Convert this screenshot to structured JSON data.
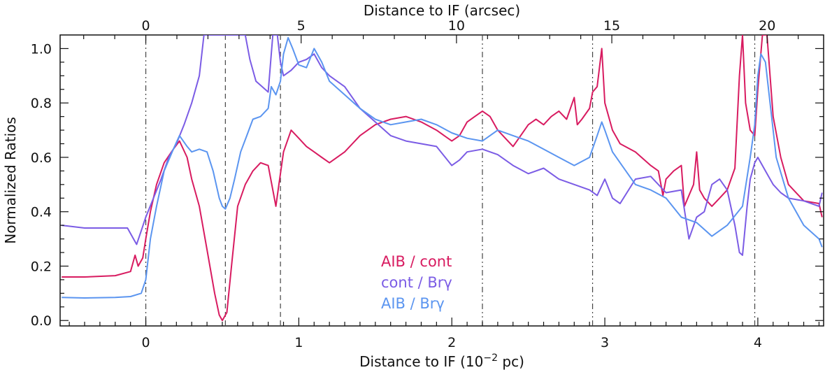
{
  "chart_data": {
    "type": "line",
    "xlabel_bottom_prefix": "Distance to IF (10",
    "xlabel_bottom_exp": "−2",
    "xlabel_bottom_suffix": " pc)",
    "xlabel_top": "Distance to IF (arcsec)",
    "ylabel": "Normalized Ratios",
    "xlim": [
      -0.56,
      4.43
    ],
    "ylim": [
      -0.02,
      1.05
    ],
    "x_ticks": [
      {
        "value": 0,
        "label": "0"
      },
      {
        "value": 1,
        "label": "1"
      },
      {
        "value": 2,
        "label": "2"
      },
      {
        "value": 3,
        "label": "3"
      },
      {
        "value": 4,
        "label": "4"
      }
    ],
    "y_ticks": [
      {
        "value": 0.0,
        "label": "0.0"
      },
      {
        "value": 0.2,
        "label": "0.2"
      },
      {
        "value": 0.4,
        "label": "0.4"
      },
      {
        "value": 0.6,
        "label": "0.6"
      },
      {
        "value": 0.8,
        "label": "0.8"
      },
      {
        "value": 1.0,
        "label": "1.0"
      }
    ],
    "top_ticks": [
      {
        "value": 0,
        "label": "0"
      },
      {
        "value": 5,
        "label": "5"
      },
      {
        "value": 10,
        "label": "10"
      },
      {
        "value": 15,
        "label": "15"
      },
      {
        "value": 20,
        "label": "20"
      }
    ],
    "arcsec_per_unit": 4.925,
    "vlines": [
      {
        "x": 0.0,
        "style": "dashdot"
      },
      {
        "x": 0.52,
        "style": "dashed"
      },
      {
        "x": 0.88,
        "style": "dashed"
      },
      {
        "x": 2.2,
        "style": "dashdot"
      },
      {
        "x": 2.92,
        "style": "dashdot"
      },
      {
        "x": 3.98,
        "style": "dashdot"
      }
    ],
    "series": [
      {
        "name": "AIB / cont",
        "color": "#d81b60",
        "points": [
          [
            -0.55,
            0.16
          ],
          [
            -0.4,
            0.16
          ],
          [
            -0.2,
            0.165
          ],
          [
            -0.1,
            0.18
          ],
          [
            -0.07,
            0.24
          ],
          [
            -0.05,
            0.2
          ],
          [
            -0.02,
            0.23
          ],
          [
            0.0,
            0.3
          ],
          [
            0.03,
            0.4
          ],
          [
            0.07,
            0.5
          ],
          [
            0.12,
            0.58
          ],
          [
            0.18,
            0.63
          ],
          [
            0.22,
            0.66
          ],
          [
            0.27,
            0.6
          ],
          [
            0.3,
            0.52
          ],
          [
            0.35,
            0.42
          ],
          [
            0.4,
            0.26
          ],
          [
            0.45,
            0.1
          ],
          [
            0.48,
            0.02
          ],
          [
            0.5,
            0.0
          ],
          [
            0.53,
            0.03
          ],
          [
            0.56,
            0.2
          ],
          [
            0.6,
            0.42
          ],
          [
            0.65,
            0.5
          ],
          [
            0.7,
            0.55
          ],
          [
            0.75,
            0.58
          ],
          [
            0.8,
            0.57
          ],
          [
            0.83,
            0.48
          ],
          [
            0.85,
            0.42
          ],
          [
            0.87,
            0.5
          ],
          [
            0.9,
            0.62
          ],
          [
            0.95,
            0.7
          ],
          [
            1.0,
            0.67
          ],
          [
            1.05,
            0.64
          ],
          [
            1.1,
            0.62
          ],
          [
            1.15,
            0.6
          ],
          [
            1.2,
            0.58
          ],
          [
            1.3,
            0.62
          ],
          [
            1.4,
            0.68
          ],
          [
            1.5,
            0.72
          ],
          [
            1.6,
            0.74
          ],
          [
            1.7,
            0.75
          ],
          [
            1.8,
            0.73
          ],
          [
            1.9,
            0.7
          ],
          [
            2.0,
            0.66
          ],
          [
            2.05,
            0.68
          ],
          [
            2.1,
            0.73
          ],
          [
            2.15,
            0.75
          ],
          [
            2.2,
            0.77
          ],
          [
            2.25,
            0.75
          ],
          [
            2.3,
            0.7
          ],
          [
            2.35,
            0.67
          ],
          [
            2.4,
            0.64
          ],
          [
            2.45,
            0.68
          ],
          [
            2.5,
            0.72
          ],
          [
            2.55,
            0.74
          ],
          [
            2.6,
            0.72
          ],
          [
            2.65,
            0.75
          ],
          [
            2.7,
            0.77
          ],
          [
            2.75,
            0.74
          ],
          [
            2.8,
            0.82
          ],
          [
            2.82,
            0.72
          ],
          [
            2.85,
            0.74
          ],
          [
            2.9,
            0.78
          ],
          [
            2.92,
            0.84
          ],
          [
            2.95,
            0.86
          ],
          [
            2.98,
            1.0
          ],
          [
            3.0,
            0.8
          ],
          [
            3.05,
            0.7
          ],
          [
            3.1,
            0.65
          ],
          [
            3.2,
            0.62
          ],
          [
            3.3,
            0.57
          ],
          [
            3.35,
            0.55
          ],
          [
            3.38,
            0.46
          ],
          [
            3.4,
            0.52
          ],
          [
            3.45,
            0.55
          ],
          [
            3.5,
            0.57
          ],
          [
            3.52,
            0.42
          ],
          [
            3.55,
            0.46
          ],
          [
            3.58,
            0.5
          ],
          [
            3.6,
            0.62
          ],
          [
            3.62,
            0.48
          ],
          [
            3.65,
            0.45
          ],
          [
            3.7,
            0.42
          ],
          [
            3.75,
            0.45
          ],
          [
            3.8,
            0.48
          ],
          [
            3.85,
            0.56
          ],
          [
            3.88,
            0.9
          ],
          [
            3.9,
            1.05
          ],
          [
            3.92,
            0.8
          ],
          [
            3.95,
            0.7
          ],
          [
            3.98,
            0.68
          ],
          [
            4.0,
            0.85
          ],
          [
            4.03,
            1.05
          ],
          [
            4.06,
            1.05
          ],
          [
            4.1,
            0.75
          ],
          [
            4.15,
            0.6
          ],
          [
            4.2,
            0.5
          ],
          [
            4.3,
            0.44
          ],
          [
            4.4,
            0.43
          ],
          [
            4.42,
            0.38
          ]
        ]
      },
      {
        "name": "cont / Brγ",
        "color": "#7b5ce5",
        "points": [
          [
            -0.55,
            0.35
          ],
          [
            -0.4,
            0.34
          ],
          [
            -0.2,
            0.34
          ],
          [
            -0.12,
            0.34
          ],
          [
            -0.08,
            0.3
          ],
          [
            -0.06,
            0.28
          ],
          [
            -0.03,
            0.33
          ],
          [
            0.0,
            0.38
          ],
          [
            0.05,
            0.45
          ],
          [
            0.1,
            0.52
          ],
          [
            0.15,
            0.6
          ],
          [
            0.2,
            0.65
          ],
          [
            0.25,
            0.72
          ],
          [
            0.3,
            0.8
          ],
          [
            0.35,
            0.9
          ],
          [
            0.38,
            1.05
          ],
          [
            0.42,
            1.05
          ],
          [
            0.5,
            1.05
          ],
          [
            0.6,
            1.05
          ],
          [
            0.65,
            1.05
          ],
          [
            0.68,
            0.96
          ],
          [
            0.72,
            0.88
          ],
          [
            0.76,
            0.86
          ],
          [
            0.8,
            0.84
          ],
          [
            0.83,
            1.05
          ],
          [
            0.86,
            1.05
          ],
          [
            0.88,
            0.95
          ],
          [
            0.9,
            0.9
          ],
          [
            0.95,
            0.92
          ],
          [
            1.0,
            0.95
          ],
          [
            1.05,
            0.96
          ],
          [
            1.1,
            0.98
          ],
          [
            1.15,
            0.93
          ],
          [
            1.2,
            0.9
          ],
          [
            1.3,
            0.86
          ],
          [
            1.4,
            0.78
          ],
          [
            1.5,
            0.73
          ],
          [
            1.6,
            0.68
          ],
          [
            1.7,
            0.66
          ],
          [
            1.8,
            0.65
          ],
          [
            1.9,
            0.64
          ],
          [
            2.0,
            0.57
          ],
          [
            2.05,
            0.59
          ],
          [
            2.1,
            0.62
          ],
          [
            2.2,
            0.63
          ],
          [
            2.3,
            0.61
          ],
          [
            2.4,
            0.57
          ],
          [
            2.5,
            0.54
          ],
          [
            2.6,
            0.56
          ],
          [
            2.7,
            0.52
          ],
          [
            2.8,
            0.5
          ],
          [
            2.9,
            0.48
          ],
          [
            2.95,
            0.46
          ],
          [
            3.0,
            0.52
          ],
          [
            3.05,
            0.45
          ],
          [
            3.1,
            0.43
          ],
          [
            3.2,
            0.52
          ],
          [
            3.3,
            0.53
          ],
          [
            3.4,
            0.47
          ],
          [
            3.5,
            0.48
          ],
          [
            3.55,
            0.3
          ],
          [
            3.6,
            0.38
          ],
          [
            3.65,
            0.4
          ],
          [
            3.7,
            0.5
          ],
          [
            3.75,
            0.52
          ],
          [
            3.8,
            0.48
          ],
          [
            3.85,
            0.35
          ],
          [
            3.88,
            0.25
          ],
          [
            3.9,
            0.24
          ],
          [
            3.93,
            0.42
          ],
          [
            3.95,
            0.52
          ],
          [
            3.98,
            0.58
          ],
          [
            4.0,
            0.6
          ],
          [
            4.05,
            0.55
          ],
          [
            4.1,
            0.5
          ],
          [
            4.15,
            0.47
          ],
          [
            4.2,
            0.45
          ],
          [
            4.3,
            0.44
          ],
          [
            4.4,
            0.42
          ],
          [
            4.42,
            0.47
          ]
        ]
      },
      {
        "name": "AIB / Brγ",
        "color": "#5b95f0",
        "points": [
          [
            -0.55,
            0.085
          ],
          [
            -0.4,
            0.083
          ],
          [
            -0.2,
            0.085
          ],
          [
            -0.1,
            0.088
          ],
          [
            -0.03,
            0.1
          ],
          [
            0.0,
            0.15
          ],
          [
            0.03,
            0.3
          ],
          [
            0.07,
            0.42
          ],
          [
            0.12,
            0.55
          ],
          [
            0.18,
            0.63
          ],
          [
            0.22,
            0.68
          ],
          [
            0.27,
            0.64
          ],
          [
            0.3,
            0.62
          ],
          [
            0.35,
            0.63
          ],
          [
            0.4,
            0.62
          ],
          [
            0.44,
            0.55
          ],
          [
            0.48,
            0.45
          ],
          [
            0.5,
            0.42
          ],
          [
            0.52,
            0.41
          ],
          [
            0.55,
            0.45
          ],
          [
            0.58,
            0.52
          ],
          [
            0.62,
            0.62
          ],
          [
            0.66,
            0.68
          ],
          [
            0.7,
            0.74
          ],
          [
            0.75,
            0.75
          ],
          [
            0.8,
            0.78
          ],
          [
            0.82,
            0.86
          ],
          [
            0.85,
            0.83
          ],
          [
            0.88,
            0.88
          ],
          [
            0.9,
            0.98
          ],
          [
            0.93,
            1.04
          ],
          [
            0.96,
            1.0
          ],
          [
            1.0,
            0.94
          ],
          [
            1.05,
            0.93
          ],
          [
            1.1,
            1.0
          ],
          [
            1.15,
            0.95
          ],
          [
            1.2,
            0.88
          ],
          [
            1.3,
            0.83
          ],
          [
            1.4,
            0.78
          ],
          [
            1.5,
            0.74
          ],
          [
            1.6,
            0.72
          ],
          [
            1.7,
            0.73
          ],
          [
            1.8,
            0.74
          ],
          [
            1.9,
            0.72
          ],
          [
            2.0,
            0.69
          ],
          [
            2.1,
            0.67
          ],
          [
            2.2,
            0.66
          ],
          [
            2.3,
            0.7
          ],
          [
            2.4,
            0.68
          ],
          [
            2.5,
            0.66
          ],
          [
            2.6,
            0.63
          ],
          [
            2.7,
            0.6
          ],
          [
            2.8,
            0.57
          ],
          [
            2.9,
            0.6
          ],
          [
            2.95,
            0.68
          ],
          [
            2.98,
            0.73
          ],
          [
            3.0,
            0.7
          ],
          [
            3.05,
            0.62
          ],
          [
            3.1,
            0.58
          ],
          [
            3.2,
            0.5
          ],
          [
            3.3,
            0.48
          ],
          [
            3.4,
            0.45
          ],
          [
            3.5,
            0.38
          ],
          [
            3.6,
            0.36
          ],
          [
            3.7,
            0.31
          ],
          [
            3.8,
            0.35
          ],
          [
            3.9,
            0.42
          ],
          [
            3.95,
            0.6
          ],
          [
            3.98,
            0.72
          ],
          [
            4.0,
            0.9
          ],
          [
            4.02,
            0.98
          ],
          [
            4.05,
            0.95
          ],
          [
            4.08,
            0.8
          ],
          [
            4.12,
            0.6
          ],
          [
            4.2,
            0.45
          ],
          [
            4.3,
            0.35
          ],
          [
            4.4,
            0.3
          ],
          [
            4.42,
            0.27
          ]
        ]
      }
    ],
    "legend": [
      {
        "label": "AIB / cont",
        "color": "#d81b60"
      },
      {
        "label": "cont / Brγ",
        "color": "#7b5ce5"
      },
      {
        "label": "AIB / Brγ",
        "color": "#5b95f0"
      }
    ]
  }
}
